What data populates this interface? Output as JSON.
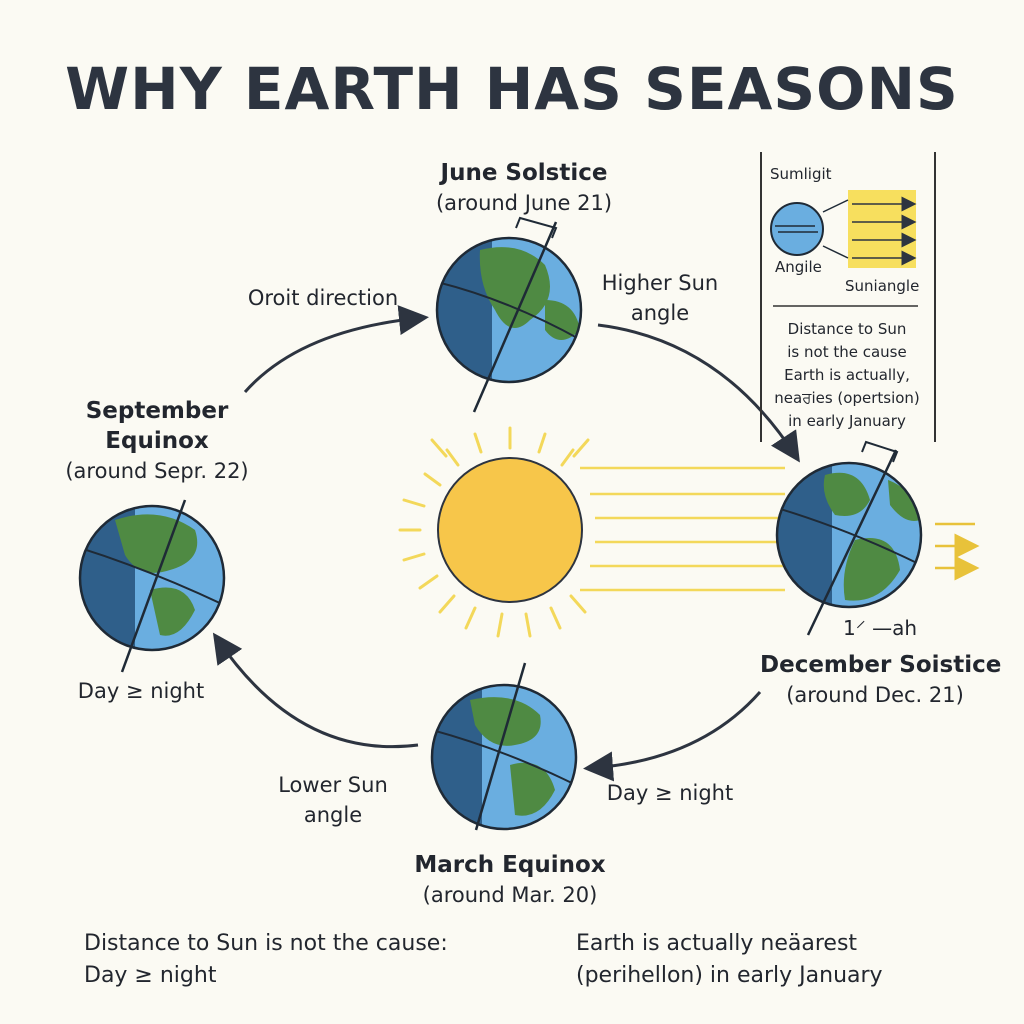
{
  "title": "WHY EARTH HAS SEASONS",
  "june": {
    "name": "June Solstice",
    "date": "(around June 21)"
  },
  "september": {
    "name_line1": "September",
    "name_line2": "Equinox",
    "date": "(around Sepr. 22)"
  },
  "december": {
    "name": "December Soistice",
    "date": "(around Dec. 21)"
  },
  "march": {
    "name": "March Equinox",
    "date": "(around Mar. 20)"
  },
  "orbit_direction": "Oroit direction",
  "higher_sun": {
    "line1": "Higher Sun",
    "line2": "angle"
  },
  "lower_sun": {
    "line1": "Lower Sun",
    "line2": "angle"
  },
  "day_night_left": "Day ≥ night",
  "day_night_right": "Day ≥ night",
  "december_mark": "1⸍ —ah",
  "legend": {
    "sunlight": "Sumligit",
    "angle": "Angile",
    "sunangle": "Suniangle",
    "lines": [
      "Distance to Sun",
      "is not the cause",
      "Earth is actually,",
      "neaਰies (opertsion)",
      "in early January"
    ]
  },
  "bottom_left": {
    "line1": "Distance to Sun is not the cause:",
    "line2": "Day ≥ night"
  },
  "bottom_right": {
    "line1": "Earth is actually neäarest",
    "line2": "(perihellon) in early January"
  },
  "colors": {
    "sun": "#f7c64a",
    "sun_ray": "#f3d85a",
    "ocean": "#6aaee0",
    "ocean_dark": "#2f5f8a",
    "land": "#4f8a43",
    "text": "#22262e"
  }
}
